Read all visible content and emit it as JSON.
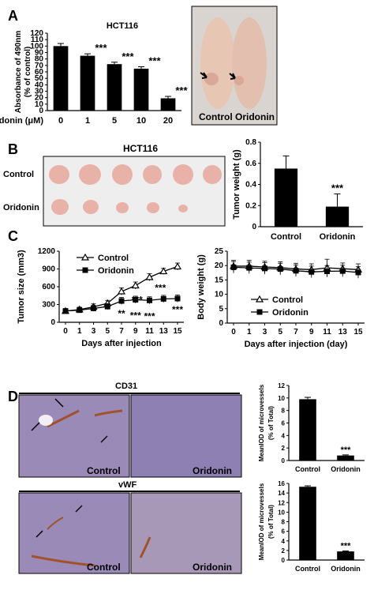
{
  "panels": {
    "A": "A",
    "B": "B",
    "C": "C",
    "D": "D"
  },
  "photo_labels": {
    "mice_left": "Control",
    "mice_right": "Oridonin",
    "tumors_title": "HCT116",
    "tumors_row1": "Control",
    "tumors_row2": "Oridonin",
    "cd31_title": "CD31",
    "vwf_title": "vWF",
    "ihc_control": "Control",
    "ihc_oridonin": "Oridonin"
  },
  "colors": {
    "bar": "#000000",
    "photo_bg": "#eeeeee",
    "skin": "#e8c6b4",
    "tumor": "#e8b2a8",
    "ihc_bg": "#9a8ab8",
    "stain": "#a0522d"
  },
  "chart_data": [
    {
      "id": "chartA",
      "type": "bar",
      "title": "HCT116",
      "ylabel": "Absorbance of 490nm (% of control)",
      "xlabel": "Oridonin  (μM)",
      "categories": [
        "0",
        "1",
        "5",
        "10",
        "20"
      ],
      "values": [
        100,
        85,
        72,
        65,
        19
      ],
      "errors": [
        4,
        3,
        3,
        3,
        3
      ],
      "annotations": [
        "",
        "***",
        "***",
        "***",
        "***"
      ],
      "ylim": [
        0,
        120
      ],
      "yticks": [
        0,
        10,
        20,
        30,
        40,
        50,
        60,
        70,
        80,
        90,
        100,
        110,
        120
      ]
    },
    {
      "id": "chartB",
      "type": "bar",
      "ylabel": "Tumor weight (g)",
      "categories": [
        "Control",
        "Oridonin"
      ],
      "values": [
        0.55,
        0.19
      ],
      "errors": [
        0.12,
        0.12
      ],
      "annotations": [
        "",
        "***"
      ],
      "ylim": [
        0,
        0.8
      ],
      "yticks": [
        0,
        0.2,
        0.4,
        0.6,
        0.8
      ]
    },
    {
      "id": "chartC1",
      "type": "line",
      "ylabel": "Tumor size (mm3)",
      "xlabel": "Days after injection",
      "x": [
        0,
        1,
        3,
        5,
        7,
        9,
        11,
        13,
        15
      ],
      "xticks": [
        "0",
        "1",
        "3",
        "5",
        "7",
        "9",
        "11",
        "13",
        "15"
      ],
      "ylim": [
        0,
        1200
      ],
      "yticks": [
        0,
        300,
        600,
        900,
        1200
      ],
      "legend": "top-left",
      "series": [
        {
          "name": "Control",
          "marker": "open-triangle",
          "values": [
            190,
            215,
            260,
            320,
            520,
            620,
            760,
            860,
            940
          ],
          "errors": [
            40,
            40,
            50,
            50,
            60,
            60,
            60,
            50,
            60
          ]
        },
        {
          "name": "Oridonin",
          "marker": "filled-square",
          "values": [
            190,
            205,
            235,
            265,
            360,
            380,
            370,
            395,
            400
          ],
          "errors": [
            40,
            40,
            50,
            50,
            60,
            60,
            60,
            60,
            60
          ]
        }
      ],
      "annotations": [
        {
          "x": 7,
          "text": "**"
        },
        {
          "x": 9,
          "text": "***"
        },
        {
          "x": 9,
          "text": "***"
        },
        {
          "x": 11,
          "text": "***"
        },
        {
          "x": 13,
          "text": "***"
        },
        {
          "x": 15,
          "text": "***"
        }
      ]
    },
    {
      "id": "chartC2",
      "type": "line",
      "ylabel": "Body weight (g)",
      "xlabel": "Days after injection (day)",
      "x": [
        0,
        1,
        3,
        5,
        7,
        9,
        11,
        13,
        15
      ],
      "xticks": [
        "0",
        "1",
        "3",
        "5",
        "7",
        "9",
        "11",
        "13",
        "15"
      ],
      "ylim": [
        0,
        25
      ],
      "yticks": [
        0,
        5,
        10,
        15,
        20,
        25
      ],
      "legend": "bottom-center",
      "series": [
        {
          "name": "Control",
          "marker": "open-triangle",
          "values": [
            19.8,
            19.8,
            19.5,
            19.3,
            18.8,
            18.6,
            19.2,
            18.9,
            18.6
          ],
          "errors": [
            2,
            2,
            2,
            2,
            2,
            2,
            3,
            2,
            2
          ]
        },
        {
          "name": "Oridonin",
          "marker": "filled-square",
          "values": [
            19.4,
            19.2,
            19.0,
            18.8,
            18.2,
            17.8,
            18.0,
            18.1,
            17.6
          ],
          "errors": [
            2,
            2,
            2,
            2,
            2,
            2,
            2,
            2,
            2
          ]
        }
      ]
    },
    {
      "id": "chartD1",
      "type": "bar",
      "ylabel": "MeanIOD of microvessels (% of Total)",
      "categories": [
        "Control",
        "Oridonin"
      ],
      "values": [
        9.8,
        0.8
      ],
      "errors": [
        0.3,
        0.1
      ],
      "annotations": [
        "",
        "***"
      ],
      "ylim": [
        0,
        12
      ],
      "yticks": [
        0,
        2,
        4,
        6,
        8,
        10,
        12
      ]
    },
    {
      "id": "chartD2",
      "type": "bar",
      "ylabel": "MeanIOD of microvessels (% of Total)",
      "categories": [
        "Control",
        "Oridonin"
      ],
      "values": [
        15.3,
        1.8
      ],
      "errors": [
        0.2,
        0.1
      ],
      "annotations": [
        "",
        "***"
      ],
      "ylim": [
        0,
        16
      ],
      "yticks": [
        0,
        2,
        4,
        6,
        8,
        10,
        12,
        14,
        16
      ]
    }
  ]
}
